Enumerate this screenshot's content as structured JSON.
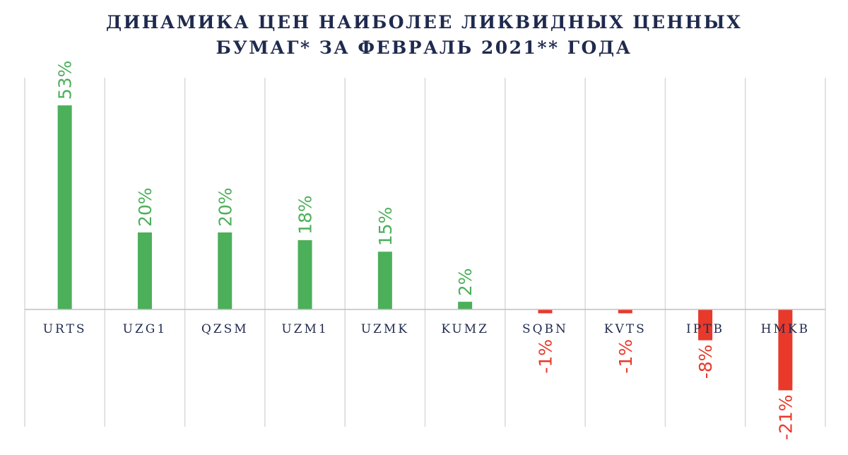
{
  "title": {
    "line1": "ДИНАМИКА ЦЕН НАИБОЛЕЕ ЛИКВИДНЫХ ЦЕННЫХ",
    "line2": "БУМАГ* ЗА ФЕВРАЛЬ 2021** ГОДА"
  },
  "colors": {
    "positive": "#4caf5a",
    "negative": "#e8392b",
    "title": "#1f2a4e",
    "grid": "#d9d9d9",
    "axis": "#bfbfbf"
  },
  "chart_data": {
    "type": "bar",
    "title": "ДИНАМИКА ЦЕН НАИБОЛЕЕ ЛИКВИДНЫХ ЦЕННЫХ БУМАГ* ЗА ФЕВРАЛЬ 2021** ГОДА",
    "xlabel": "",
    "ylabel": "",
    "categories": [
      "URTS",
      "UZG1",
      "QZSM",
      "UZM1",
      "UZMK",
      "KUMZ",
      "SQBN",
      "KVTS",
      "IPTB",
      "HMKB"
    ],
    "values": [
      53,
      20,
      20,
      18,
      15,
      2,
      -1,
      -1,
      -8,
      -21
    ],
    "labels": [
      "53%",
      "20%",
      "20%",
      "18%",
      "15%",
      "2%",
      "-1%",
      "-1%",
      "-8%",
      "-21%"
    ],
    "ylim": [
      -30,
      60
    ],
    "grid": "vertical",
    "legend": "none"
  }
}
